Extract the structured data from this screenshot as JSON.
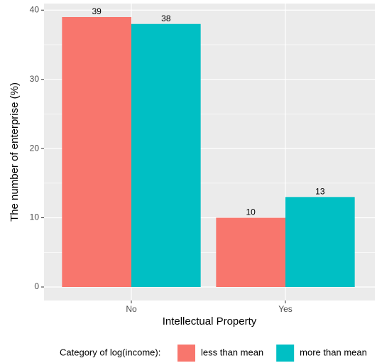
{
  "chart_data": {
    "type": "bar",
    "x_label": "Intellectual Property",
    "y_label": "The number of enterprise (%)",
    "categories": [
      "No",
      "Yes"
    ],
    "series": [
      {
        "name": "less than mean",
        "color": "#F8766D",
        "values": [
          39,
          10
        ]
      },
      {
        "name": "more than mean",
        "color": "#00BFC4",
        "values": [
          38,
          13
        ]
      }
    ],
    "ylim": [
      -1.95,
      40.95
    ],
    "yticks": [
      0,
      10,
      20,
      30,
      40
    ],
    "grid": true,
    "legend_title": "Category of log(income):",
    "legend_position": "bottom"
  }
}
